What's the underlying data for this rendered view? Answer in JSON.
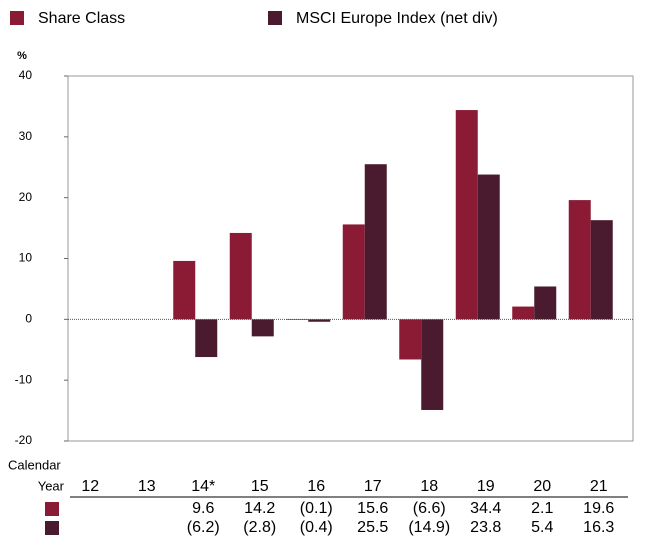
{
  "chart_data": {
    "type": "bar",
    "ylabel": "%",
    "xlabel": [
      "Calendar",
      "Year"
    ],
    "categories": [
      "12",
      "13",
      "14*",
      "15",
      "16",
      "17",
      "18",
      "19",
      "20",
      "21"
    ],
    "series": [
      {
        "name": "Share Class",
        "color": "#8b1a35",
        "values": [
          null,
          null,
          9.6,
          14.2,
          -0.1,
          15.6,
          -6.6,
          34.4,
          2.1,
          19.6
        ],
        "value_labels": [
          null,
          null,
          "9.6",
          "14.2",
          "(0.1)",
          "15.6",
          "(6.6)",
          "34.4",
          "2.1",
          "19.6"
        ]
      },
      {
        "name": "MSCI Europe Index (net div)",
        "color": "#4a1a2e",
        "values": [
          null,
          null,
          -6.2,
          -2.8,
          -0.4,
          25.5,
          -14.9,
          23.8,
          5.4,
          16.3
        ],
        "value_labels": [
          null,
          null,
          "(6.2)",
          "(2.8)",
          "(0.4)",
          "25.5",
          "(14.9)",
          "23.8",
          "5.4",
          "16.3"
        ]
      }
    ],
    "ylim": [
      -20,
      40
    ],
    "yticks": [
      -20,
      -10,
      0,
      10,
      20,
      30,
      40
    ],
    "grid": false
  }
}
